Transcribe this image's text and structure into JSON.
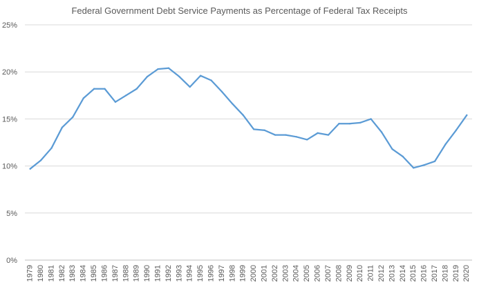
{
  "chart_data": {
    "type": "line",
    "title": "Federal Government Debt Service Payments as Percentage of Federal Tax Receipts",
    "xlabel": "",
    "ylabel": "",
    "categories": [
      "1979",
      "1980",
      "1981",
      "1982",
      "1983",
      "1984",
      "1985",
      "1986",
      "1987",
      "1988",
      "1989",
      "1990",
      "1991",
      "1992",
      "1993",
      "1994",
      "1995",
      "1996",
      "1997",
      "1998",
      "1999",
      "2000",
      "2001",
      "2002",
      "2003",
      "2004",
      "2005",
      "2006",
      "2007",
      "2008",
      "2009",
      "2010",
      "2011",
      "2012",
      "2013",
      "2014",
      "2015",
      "2016",
      "2017",
      "2018",
      "2019",
      "2020"
    ],
    "series": [
      {
        "name": "",
        "color": "#5b9bd5",
        "values": [
          9.7,
          10.6,
          11.9,
          14.1,
          15.2,
          17.2,
          18.2,
          18.2,
          16.8,
          17.5,
          18.2,
          19.5,
          20.3,
          20.4,
          19.5,
          18.4,
          19.6,
          19.1,
          17.9,
          16.6,
          15.4,
          13.9,
          13.8,
          13.3,
          13.3,
          13.1,
          12.8,
          13.5,
          13.3,
          14.5,
          14.5,
          14.6,
          15.0,
          13.6,
          11.8,
          11.0,
          9.8,
          10.1,
          10.5,
          12.3,
          13.8,
          15.4
        ]
      }
    ],
    "y_ticks": [
      "0%",
      "5%",
      "10%",
      "15%",
      "20%",
      "25%"
    ],
    "y_tick_values": [
      0,
      5,
      10,
      15,
      20,
      25
    ],
    "ylim": [
      0,
      25
    ],
    "grid": true,
    "legend": "none"
  }
}
